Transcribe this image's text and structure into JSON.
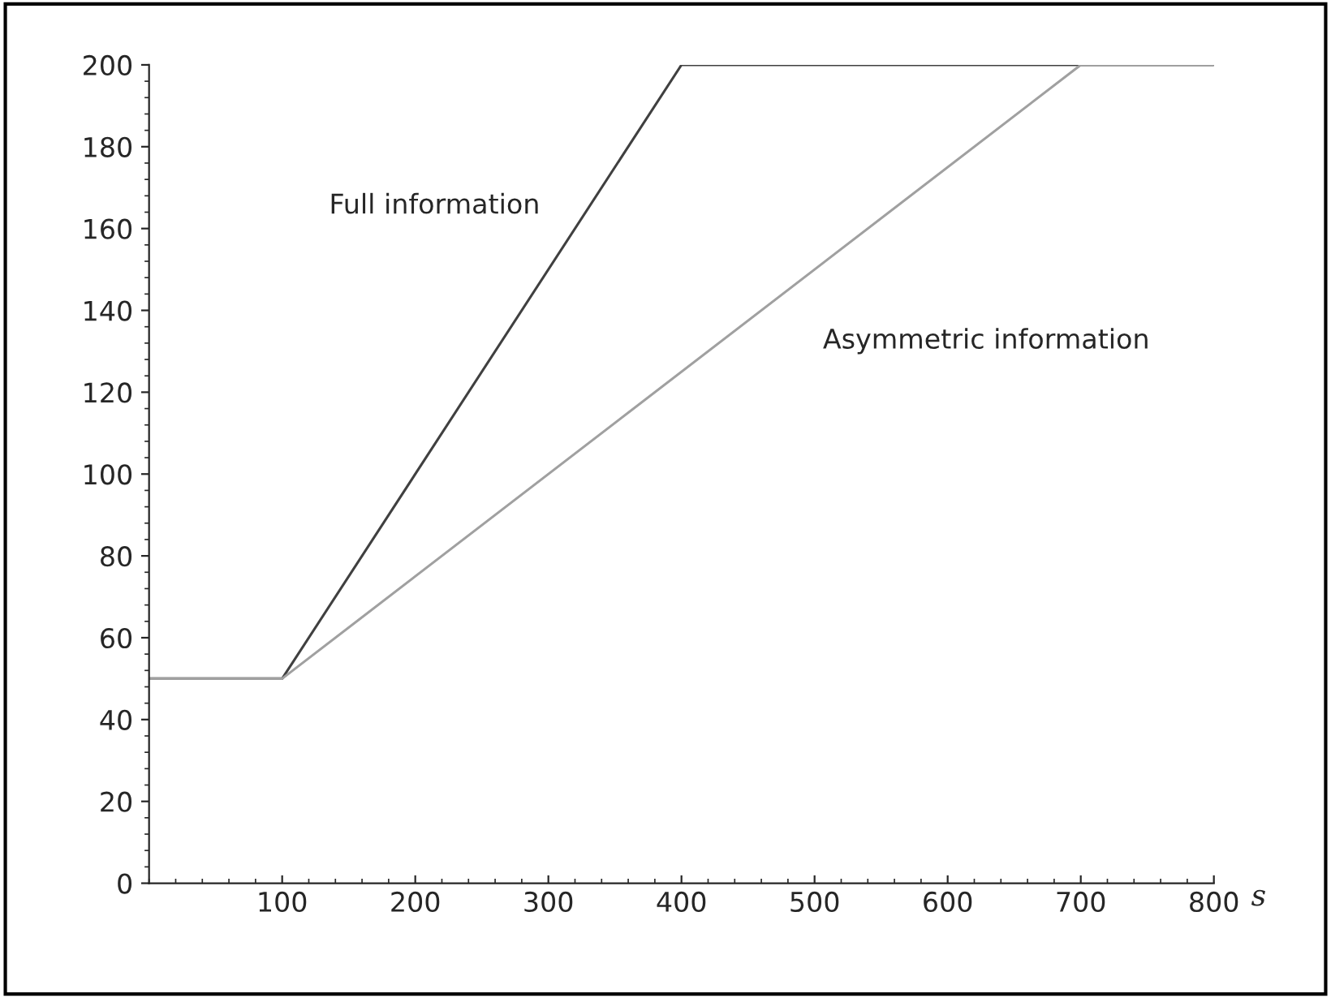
{
  "chart_data": {
    "type": "line",
    "xlabel": "s",
    "xlim": [
      0,
      800
    ],
    "ylim": [
      0,
      200
    ],
    "xticks": [
      100,
      200,
      300,
      400,
      500,
      600,
      700,
      800
    ],
    "yticks": [
      0,
      20,
      40,
      60,
      80,
      100,
      120,
      140,
      160,
      180,
      200
    ],
    "grid": false,
    "legend": false,
    "marker": "none",
    "line_style": "solid",
    "series": [
      {
        "name": "Full information",
        "color": "#404040",
        "x": [
          0,
          100,
          400,
          800
        ],
        "values": [
          50,
          50,
          200,
          200
        ]
      },
      {
        "name": "Asymmetric information",
        "color": "#a0a0a0",
        "x": [
          0,
          100,
          700,
          800
        ],
        "values": [
          50,
          50,
          200,
          200
        ]
      }
    ]
  }
}
